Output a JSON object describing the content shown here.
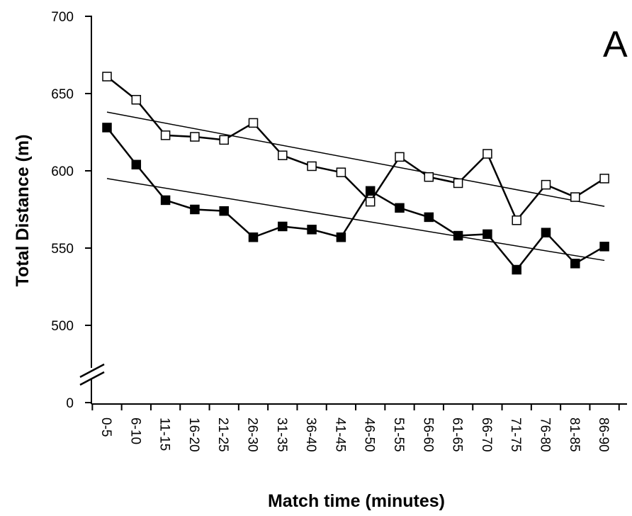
{
  "chart_data": {
    "type": "line",
    "title": "",
    "panel_label": "A",
    "xlabel": "Match time (minutes)",
    "ylabel": "Total Distance  (m)",
    "categories": [
      "0-5",
      "6-10",
      "11-15",
      "16-20",
      "21-25",
      "26-30",
      "31-35",
      "36-40",
      "41-45",
      "46-50",
      "51-55",
      "56-60",
      "61-65",
      "66-70",
      "71-75",
      "76-80",
      "81-85",
      "86-90"
    ],
    "y_ticks": [
      "0",
      "500",
      "550",
      "600",
      "650",
      "700"
    ],
    "ylim": [
      0,
      700
    ],
    "axis_break": "between 0 and 500",
    "grid": false,
    "legend": "none",
    "series": [
      {
        "marker": "open-square",
        "color": "#000000",
        "values": [
          661,
          646,
          623,
          622,
          620,
          631,
          610,
          603,
          599,
          580,
          609,
          596,
          592,
          611,
          568,
          591,
          583,
          595
        ],
        "trendline": [
          638,
          577
        ]
      },
      {
        "marker": "filled-square",
        "color": "#000000",
        "values": [
          628,
          604,
          581,
          575,
          574,
          557,
          564,
          562,
          557,
          587,
          576,
          570,
          558,
          559,
          536,
          560,
          540,
          551
        ],
        "trendline": [
          595,
          542
        ]
      }
    ]
  }
}
